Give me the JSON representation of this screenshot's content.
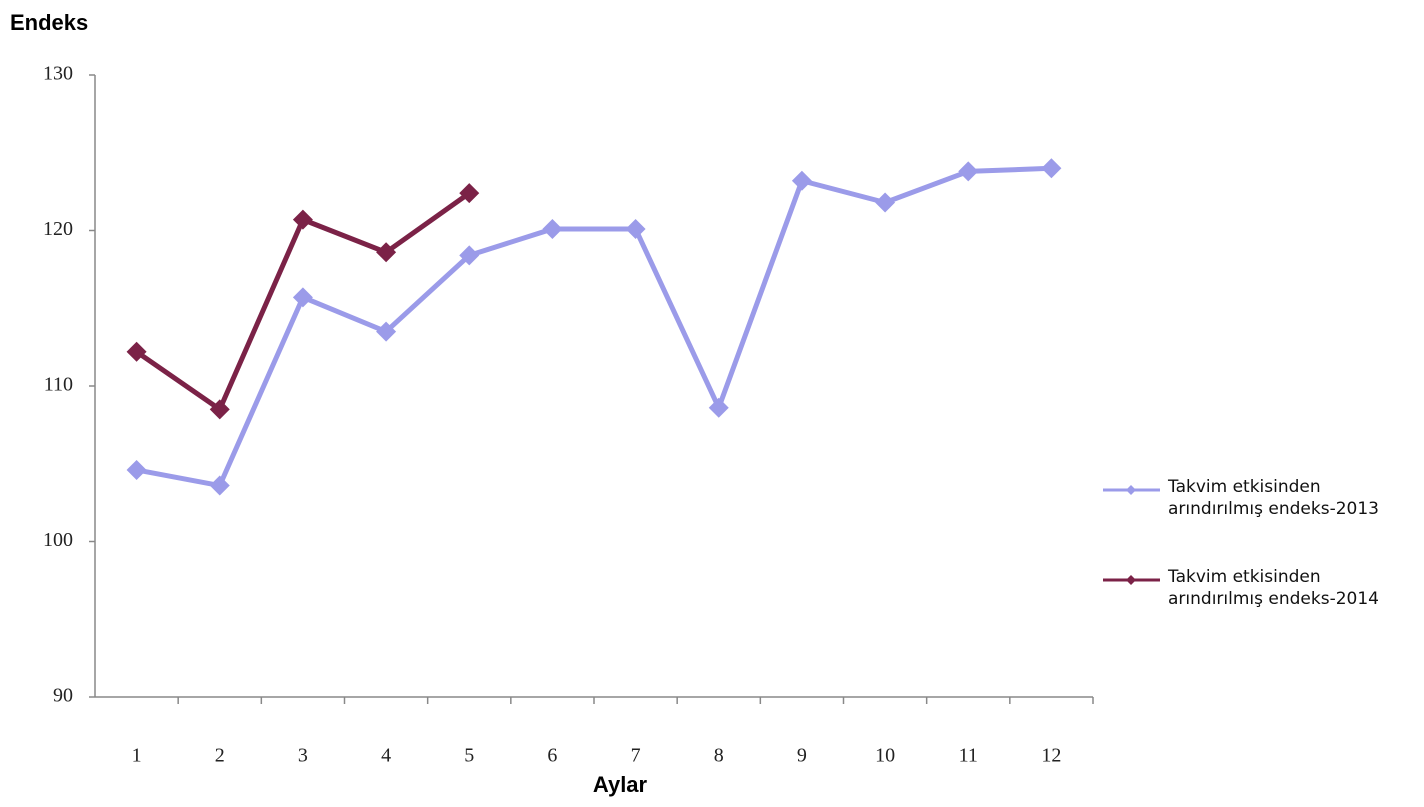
{
  "chart_data": {
    "type": "line",
    "y_label": "Endeks",
    "x_label": "Aylar",
    "categories": [
      "1",
      "2",
      "3",
      "4",
      "5",
      "6",
      "7",
      "8",
      "9",
      "10",
      "11",
      "12"
    ],
    "series": [
      {
        "name": "Takvim etkisinden arındırılmış endeks-2013",
        "color": "#9b9be9",
        "values": [
          104.6,
          103.6,
          115.7,
          113.5,
          118.4,
          120.1,
          120.1,
          108.6,
          123.2,
          121.8,
          123.8,
          124.0
        ]
      },
      {
        "name": "Takvim etkisinden arındırılmış endeks-2014",
        "color": "#7b2247",
        "values": [
          112.2,
          108.5,
          120.7,
          118.6,
          122.4,
          null,
          null,
          null,
          null,
          null,
          null,
          null
        ]
      }
    ],
    "ylim": [
      90,
      130
    ],
    "yticks": [
      90,
      100,
      110,
      120,
      130
    ],
    "legend": "right"
  }
}
